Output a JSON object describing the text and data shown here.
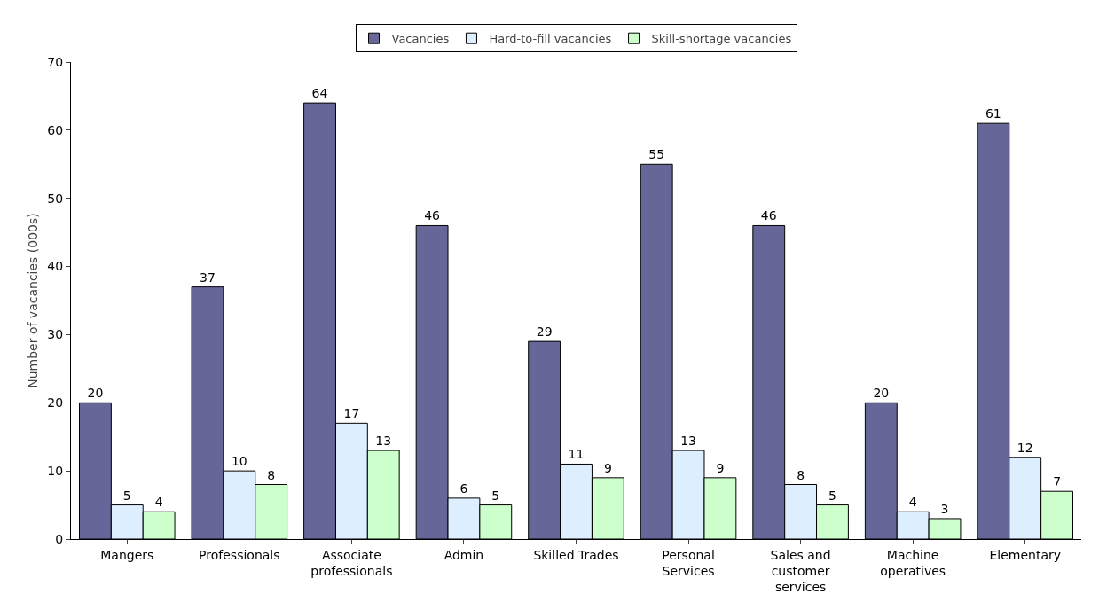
{
  "chart_data": {
    "type": "bar",
    "categories": [
      "Mangers",
      "Professionals",
      "Associate professionals",
      "Admin",
      "Skilled Trades",
      "Personal Services",
      "Sales and customer services",
      "Machine operatives",
      "Elementary"
    ],
    "series": [
      {
        "name": "Vacancies",
        "color": "#666699",
        "values": [
          20,
          37,
          64,
          46,
          29,
          55,
          46,
          20,
          61
        ]
      },
      {
        "name": "Hard-to-fill vacancies",
        "color": "#ddeeff",
        "values": [
          5,
          10,
          17,
          6,
          11,
          13,
          8,
          4,
          12
        ]
      },
      {
        "name": "Skill-shortage vacancies",
        "color": "#ccffcc",
        "values": [
          4,
          8,
          13,
          5,
          9,
          9,
          5,
          3,
          7
        ]
      }
    ],
    "ylabel": "Number of vacancies (000s)",
    "ylim": [
      0,
      70
    ],
    "yticks": [
      0,
      10,
      20,
      30,
      40,
      50,
      60,
      70
    ],
    "data_labels": true,
    "grid": false,
    "legend": "top"
  }
}
